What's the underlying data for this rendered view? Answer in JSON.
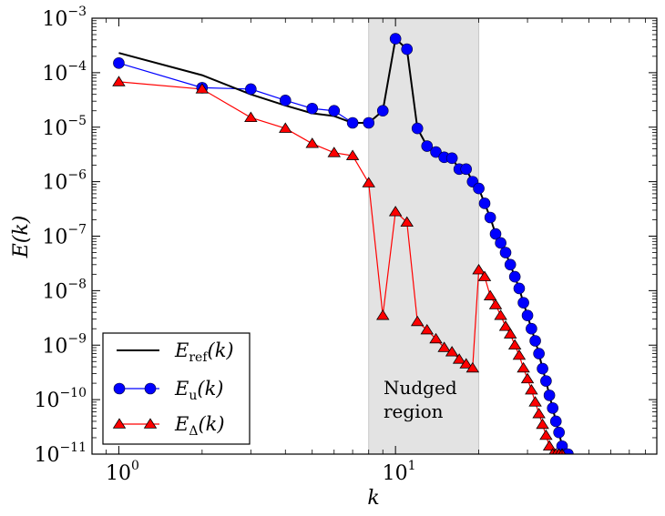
{
  "chart_data": {
    "type": "line",
    "title": "",
    "xlabel": "k",
    "ylabel": "E(k)",
    "xscale": "log",
    "yscale": "log",
    "xlim": [
      0.8,
      88
    ],
    "ylim": [
      1e-11,
      0.001
    ],
    "x_ticks": [
      {
        "base": "10",
        "exp": "0"
      },
      {
        "base": "10",
        "exp": "1"
      }
    ],
    "y_ticks": [
      {
        "base": "10",
        "exp": "−11"
      },
      {
        "base": "10",
        "exp": "−10"
      },
      {
        "base": "10",
        "exp": "−9"
      },
      {
        "base": "10",
        "exp": "−8"
      },
      {
        "base": "10",
        "exp": "−7"
      },
      {
        "base": "10",
        "exp": "−6"
      },
      {
        "base": "10",
        "exp": "−5"
      },
      {
        "base": "10",
        "exp": "−4"
      },
      {
        "base": "10",
        "exp": "−3"
      }
    ],
    "shaded_region": {
      "x_range": [
        8,
        20
      ],
      "color": "#e3e3e3"
    },
    "annotation": {
      "line1": "Nudged",
      "line2": "region"
    },
    "legend_position": "lower-left",
    "series": [
      {
        "name": "E_ref(k)",
        "legend_main": "E",
        "legend_sub": "ref",
        "legend_tail": "(k)",
        "color": "#000000",
        "marker": "none",
        "x": [
          1,
          2,
          3,
          4,
          5,
          6,
          7,
          8,
          9,
          10,
          11,
          12,
          13,
          14,
          15,
          16,
          17,
          18,
          19,
          20,
          21,
          22,
          23,
          24,
          25,
          26,
          27,
          28,
          29,
          30,
          31,
          32,
          33,
          34,
          35,
          36,
          37,
          38,
          39,
          40,
          41,
          42
        ],
        "y": [
          0.00023,
          9e-05,
          4e-05,
          2.5e-05,
          1.8e-05,
          1.6e-05,
          1.2e-05,
          1.2e-05,
          2e-05,
          0.00042,
          0.00027,
          9.5e-06,
          4.5e-06,
          3.5e-06,
          2.8e-06,
          2.7e-06,
          1.7e-06,
          1.7e-06,
          1e-06,
          7.5e-07,
          4e-07,
          2.2e-07,
          1.1e-07,
          7.5e-08,
          5e-08,
          3e-08,
          1.8e-08,
          1.1e-08,
          6e-09,
          3.5e-09,
          2e-09,
          1.2e-09,
          7e-10,
          3.7e-10,
          2.2e-10,
          1.2e-10,
          7e-11,
          4e-11,
          2.5e-11,
          1.4e-11,
          1e-11,
          1e-11
        ]
      },
      {
        "name": "E_u(k)",
        "legend_main": "E",
        "legend_sub": "u",
        "legend_tail": "(k)",
        "color": "#0000ff",
        "marker": "circle",
        "x": [
          1,
          2,
          3,
          4,
          5,
          6,
          7,
          8,
          9,
          10,
          11,
          12,
          13,
          14,
          15,
          16,
          17,
          18,
          19,
          20,
          21,
          22,
          23,
          24,
          25,
          26,
          27,
          28,
          29,
          30,
          31,
          32,
          33,
          34,
          35,
          36,
          37,
          38,
          39,
          40,
          41,
          42
        ],
        "y": [
          0.00015,
          5.3e-05,
          5e-05,
          3.1e-05,
          2.2e-05,
          2e-05,
          1.2e-05,
          1.2e-05,
          2e-05,
          0.00042,
          0.00027,
          9.5e-06,
          4.5e-06,
          3.5e-06,
          2.8e-06,
          2.7e-06,
          1.7e-06,
          1.7e-06,
          1e-06,
          7.5e-07,
          4e-07,
          2.2e-07,
          1.1e-07,
          7.5e-08,
          5e-08,
          3e-08,
          1.8e-08,
          1.1e-08,
          6e-09,
          3.5e-09,
          2e-09,
          1.2e-09,
          7e-10,
          3.7e-10,
          2.2e-10,
          1.2e-10,
          7e-11,
          4e-11,
          2.5e-11,
          1.4e-11,
          1e-11,
          1e-11
        ]
      },
      {
        "name": "E_Δ(k)",
        "legend_main": "E",
        "legend_sub": "Δ",
        "legend_tail": "(k)",
        "color": "#ff0000",
        "marker": "triangle",
        "x": [
          1,
          2,
          3,
          4,
          5,
          6,
          7,
          8,
          9,
          10,
          11,
          12,
          13,
          14,
          15,
          16,
          17,
          18,
          19,
          20,
          21,
          22,
          23,
          24,
          25,
          26,
          27,
          28,
          29,
          30,
          31,
          32,
          33,
          34,
          35,
          36,
          37,
          38,
          39,
          40
        ],
        "y": [
          6.8e-05,
          5e-05,
          1.5e-05,
          9.5e-06,
          5e-06,
          3.4e-06,
          3e-06,
          9.5e-07,
          3.5e-09,
          2.8e-07,
          1.8e-07,
          2.7e-09,
          1.9e-09,
          1.3e-09,
          9e-10,
          7.5e-10,
          5.5e-10,
          4.5e-10,
          3.8e-10,
          2.4e-08,
          1.8e-08,
          8e-09,
          5.5e-09,
          3.5e-09,
          2.2e-09,
          1.6e-09,
          1e-09,
          6.5e-10,
          3.8e-10,
          2.4e-10,
          1.5e-10,
          9e-11,
          5.5e-11,
          3.5e-11,
          2.2e-11,
          1.4e-11,
          1e-11,
          1e-11,
          1e-11,
          1e-11
        ]
      }
    ]
  }
}
